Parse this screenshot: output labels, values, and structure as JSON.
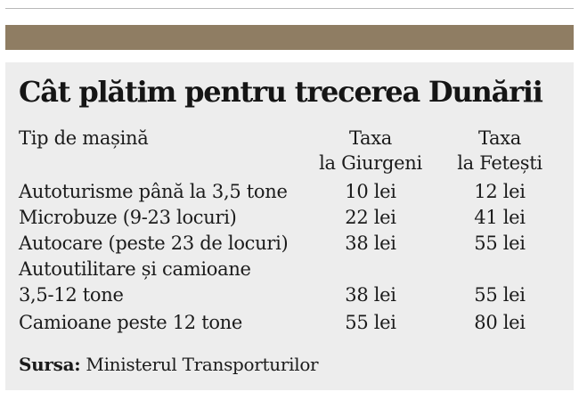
{
  "title": "Cât plătim pentru trecerea Dunării",
  "table": {
    "headers": {
      "type": "Tip de mașină",
      "giurgiu_line1": "Taxa",
      "giurgiu_line2": "la Giurgeni",
      "fetesti_line1": "Taxa",
      "fetesti_line2": "la Fetești"
    },
    "rows": [
      {
        "type": "Autoturisme până la 3,5 tone",
        "giurgeni": "10 lei",
        "fetesti": "12 lei"
      },
      {
        "type": "Microbuze (9-23 locuri)",
        "giurgeni": "22 lei",
        "fetesti": "41 lei"
      },
      {
        "type": "Autocare (peste 23 de locuri)",
        "giurgeni": "38 lei",
        "fetesti": "55 lei"
      },
      {
        "type": "Autoutilitare și camioane",
        "type_line2": "3,5-12 tone",
        "giurgeni": "38 lei",
        "fetesti": "55 lei"
      },
      {
        "type": "Camioane peste 12 tone",
        "giurgeni": "55 lei",
        "fetesti": "80 lei"
      }
    ]
  },
  "source": {
    "label": "Sursa:",
    "value": "Ministerul Transporturilor"
  },
  "colors": {
    "accent_bar": "#8f7d63",
    "panel_bg": "#ededed",
    "text": "#1b1b1b"
  }
}
